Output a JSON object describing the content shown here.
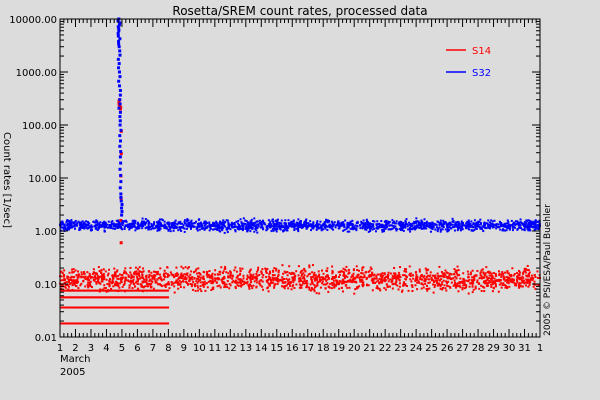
{
  "chart_data": {
    "type": "scatter",
    "title": "Rosetta/SREM count rates, processed data",
    "ylabel": "Count rates [1/sec]",
    "xlabel_lines": [
      "March",
      "2005"
    ],
    "x_tick_labels": [
      "1",
      "2",
      "3",
      "4",
      "5",
      "6",
      "7",
      "8",
      "9",
      "10",
      "11",
      "12",
      "13",
      "14",
      "15",
      "16",
      "17",
      "18",
      "19",
      "20",
      "21",
      "22",
      "23",
      "24",
      "25",
      "26",
      "27",
      "28",
      "29",
      "30",
      "31",
      "1"
    ],
    "xlim": [
      1,
      32
    ],
    "yscale": "log",
    "ylim": [
      0.01,
      10000
    ],
    "y_ticks": [
      0.01,
      0.1,
      1,
      10,
      100,
      1000,
      10000
    ],
    "y_tick_labels": [
      "0.01",
      "0.10",
      "1.00",
      "10.00",
      "100.00",
      "1000.00",
      "10000.00"
    ],
    "copyright": "2005 © PSI/ESA/Paul Buehler",
    "legend_position": "top-right",
    "series": [
      {
        "name": "S14",
        "color": "#ff0000",
        "baseline_band": [
          0.06,
          0.25
        ],
        "typical_points": [
          {
            "x": 1,
            "y": 0.14
          },
          {
            "x": 5,
            "y": 0.13
          },
          {
            "x": 10,
            "y": 0.12
          },
          {
            "x": 15,
            "y": 0.13
          },
          {
            "x": 20,
            "y": 0.13
          },
          {
            "x": 25,
            "y": 0.13
          },
          {
            "x": 30,
            "y": 0.13
          },
          {
            "x": 32,
            "y": 0.13
          }
        ],
        "low_level_rows_to_day_8": [
          0.018,
          0.036,
          0.056,
          0.075
        ],
        "spike": [
          {
            "x": 4.85,
            "y": 300
          },
          {
            "x": 4.9,
            "y": 200
          },
          {
            "x": 4.95,
            "y": 0.6
          }
        ]
      },
      {
        "name": "S32",
        "color": "#0000ff",
        "baseline_band": [
          0.9,
          1.8
        ],
        "typical_points": [
          {
            "x": 1,
            "y": 1.3
          },
          {
            "x": 5,
            "y": 1.4
          },
          {
            "x": 10,
            "y": 1.2
          },
          {
            "x": 15,
            "y": 1.2
          },
          {
            "x": 20,
            "y": 1.2
          },
          {
            "x": 25,
            "y": 1.2
          },
          {
            "x": 30,
            "y": 1.25
          },
          {
            "x": 32,
            "y": 1.25
          }
        ],
        "spike": [
          {
            "x": 4.8,
            "y": 10000
          },
          {
            "x": 4.8,
            "y": 6000
          },
          {
            "x": 4.82,
            "y": 3000
          },
          {
            "x": 4.84,
            "y": 1000
          },
          {
            "x": 4.86,
            "y": 300
          },
          {
            "x": 4.88,
            "y": 100
          },
          {
            "x": 4.9,
            "y": 25
          },
          {
            "x": 4.93,
            "y": 5
          },
          {
            "x": 4.98,
            "y": 2
          }
        ]
      }
    ]
  }
}
